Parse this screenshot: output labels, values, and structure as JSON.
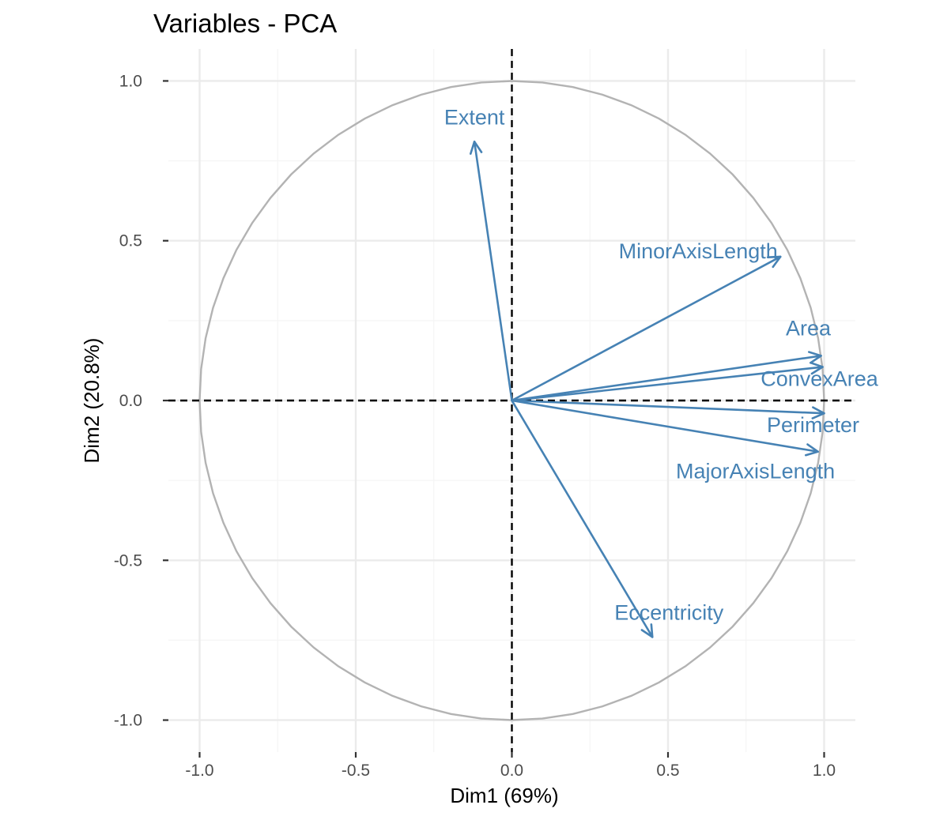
{
  "colors": {
    "arrow": "#4682b4",
    "grid_major": "#ebebeb",
    "grid_minor": "#f5f5f5",
    "circle": "#b3b3b3",
    "reference_line": "#000000",
    "tick_text": "#4d4d4d"
  },
  "chart_data": {
    "type": "scatter",
    "subtype": "pca-variable-correlation-circle",
    "title": "Variables - PCA",
    "xlabel": "Dim1 (69%)",
    "ylabel": "Dim2 (20.8%)",
    "xlim": [
      -1.1,
      1.1
    ],
    "ylim": [
      -1.1,
      1.1
    ],
    "xticks": [
      -1.0,
      -0.5,
      0.0,
      0.5,
      1.0
    ],
    "xtick_labels": [
      "-1.0",
      "-0.5",
      "0.0",
      "0.5",
      "1.0"
    ],
    "yticks": [
      -1.0,
      -0.5,
      0.0,
      0.5,
      1.0
    ],
    "ytick_labels": [
      "-1.0",
      "-0.5",
      "0.0",
      "0.5",
      "1.0"
    ],
    "grid": true,
    "unit_circle": true,
    "reference_lines": {
      "x": 0,
      "y": 0,
      "style": "dashed"
    },
    "variables": [
      {
        "name": "Extent",
        "x": -0.12,
        "y": 0.81
      },
      {
        "name": "MinorAxisLength",
        "x": 0.86,
        "y": 0.45
      },
      {
        "name": "Area",
        "x": 0.99,
        "y": 0.14
      },
      {
        "name": "ConvexArea",
        "x": 0.995,
        "y": 0.105
      },
      {
        "name": "Perimeter",
        "x": 1.0,
        "y": -0.04
      },
      {
        "name": "MajorAxisLength",
        "x": 0.98,
        "y": -0.16
      },
      {
        "name": "Eccentricity",
        "x": 0.45,
        "y": -0.74
      }
    ]
  }
}
